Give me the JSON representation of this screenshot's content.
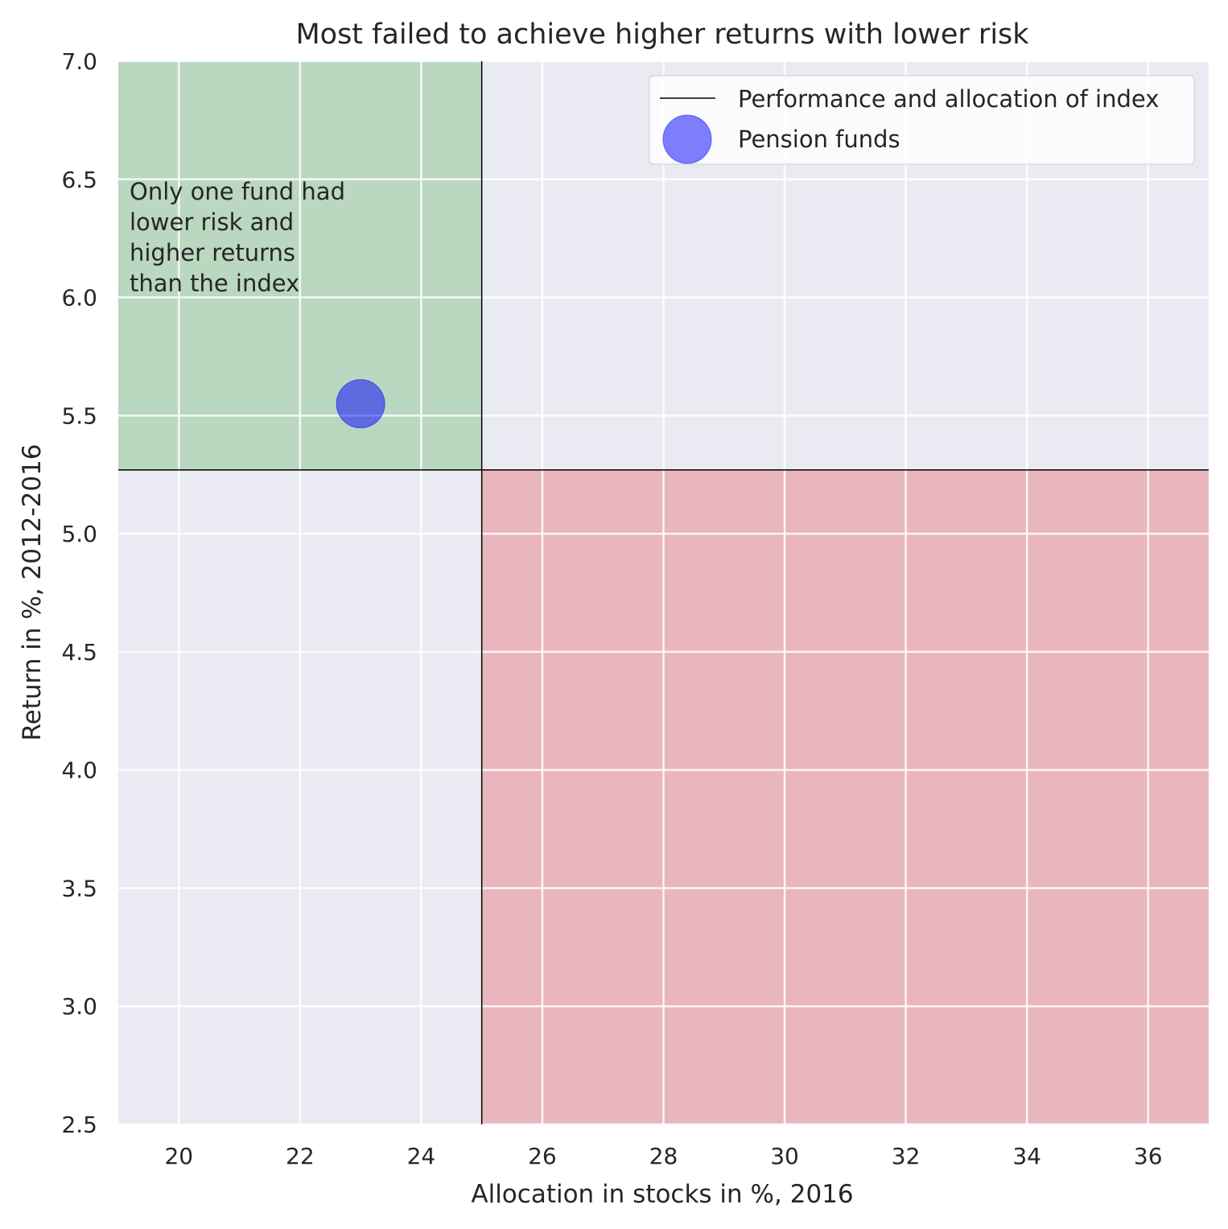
{
  "chart_data": {
    "type": "scatter",
    "title": "Most failed to achieve higher returns with lower risk",
    "xlabel": "Allocation in stocks in %, 2016",
    "ylabel": "Return in %, 2012-2016",
    "xlim": [
      19,
      37
    ],
    "ylim": [
      2.5,
      7.0
    ],
    "x_ticks": [
      20,
      22,
      24,
      26,
      28,
      30,
      32,
      34,
      36
    ],
    "y_ticks": [
      2.5,
      3.0,
      3.5,
      4.0,
      4.5,
      5.0,
      5.5,
      6.0,
      6.5,
      7.0
    ],
    "x_tick_labels": [
      "20",
      "22",
      "24",
      "26",
      "28",
      "30",
      "32",
      "34",
      "36"
    ],
    "y_tick_labels": [
      "2.5",
      "3.0",
      "3.5",
      "4.0",
      "4.5",
      "5.0",
      "5.5",
      "6.0",
      "6.5",
      "7.0"
    ],
    "grid": true,
    "legend_position": "top-right",
    "index_reference": {
      "name": "Performance and allocation of index",
      "x": 25.0,
      "y": 5.27,
      "color": "#000000"
    },
    "series": [
      {
        "name": "Pension funds",
        "color": "#0000ff",
        "points": [
          {
            "x": 23.0,
            "y": 5.55
          }
        ]
      }
    ],
    "regions": [
      {
        "name": "lower-risk-higher-return",
        "color": "#2ca02c",
        "x": [
          19,
          25.0
        ],
        "y": [
          5.27,
          7.0
        ]
      },
      {
        "name": "higher-risk-lower-return",
        "color": "#e31a1c",
        "x": [
          25.0,
          37
        ],
        "y": [
          2.5,
          5.27
        ]
      }
    ],
    "annotation": {
      "lines": [
        "Only one fund had",
        "lower risk and",
        "higher returns",
        "than the index"
      ]
    },
    "colors": {
      "plot_background": "#eaeaf2",
      "grid": "#ffffff"
    }
  }
}
